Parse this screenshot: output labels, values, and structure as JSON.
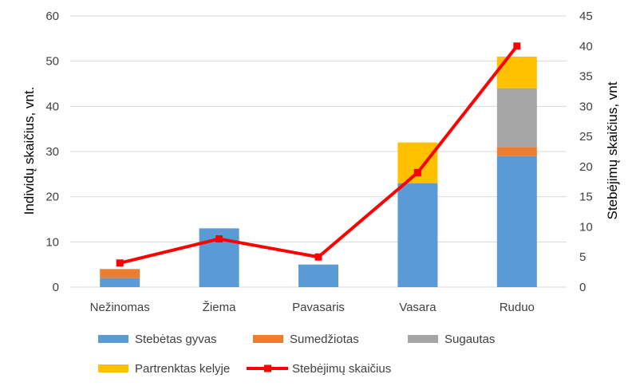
{
  "chart_data": {
    "type": "bar",
    "stacked": true,
    "categories": [
      "Nežinomas",
      "Žiema",
      "Pavasaris",
      "Vasara",
      "Ruduo"
    ],
    "series": [
      {
        "name": "Stebėtas gyvas",
        "type": "bar",
        "axis": "left",
        "color": "#5b9bd5",
        "values": [
          2,
          13,
          5,
          23,
          29
        ]
      },
      {
        "name": "Sumedžiotas",
        "type": "bar",
        "axis": "left",
        "color": "#ed7d31",
        "values": [
          2,
          0,
          0,
          0,
          2
        ]
      },
      {
        "name": "Sugautas",
        "type": "bar",
        "axis": "left",
        "color": "#a5a5a5",
        "values": [
          0,
          0,
          0,
          0,
          13
        ]
      },
      {
        "name": "Partrenktas kelyje",
        "type": "bar",
        "axis": "left",
        "color": "#ffc000",
        "values": [
          0,
          0,
          0,
          9,
          7
        ]
      },
      {
        "name": "Stebėjimų skaičius",
        "type": "line",
        "axis": "right",
        "color": "#ff0000",
        "marker": "square",
        "values": [
          4,
          8,
          5,
          19,
          40
        ]
      }
    ],
    "ylabel": "Individų skaičius, vnt.",
    "y2label": "Stebėjimų skaičius, vnt",
    "ylim": [
      0,
      60
    ],
    "y2lim": [
      0,
      45
    ],
    "yticks": [
      "0",
      "10",
      "20",
      "30",
      "40",
      "50",
      "60"
    ],
    "y2ticks": [
      "0",
      "5",
      "10",
      "15",
      "20",
      "25",
      "30",
      "35",
      "40",
      "45"
    ],
    "grid": true,
    "legend_position": "bottom"
  }
}
